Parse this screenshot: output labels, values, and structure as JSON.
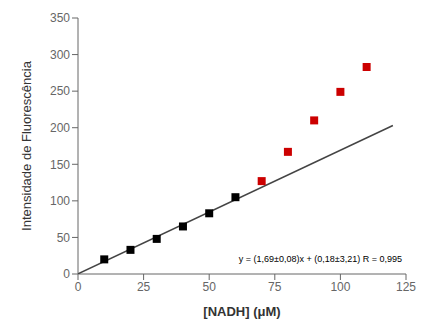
{
  "chart_data": {
    "type": "scatter",
    "xlabel": "[NADH] (μM)",
    "ylabel": "Intensidade de Fluorescência",
    "annotation": "y = (1,69±0,08)x + (0,18±3,21)  R = 0,995",
    "xlim": [
      0,
      125
    ],
    "ylim": [
      0,
      350
    ],
    "xticks": [
      0,
      25,
      50,
      75,
      100,
      125
    ],
    "yticks": [
      0,
      50,
      100,
      150,
      200,
      250,
      300,
      350
    ],
    "grid": false,
    "series": [
      {
        "type": "scatter",
        "marker": "square",
        "color": "#000000",
        "x": [
          10,
          20,
          30,
          40,
          50,
          60
        ],
        "values": [
          20,
          33,
          48,
          65,
          83,
          105
        ]
      },
      {
        "type": "scatter",
        "marker": "square",
        "color": "#cc0000",
        "x": [
          70,
          80,
          90,
          100,
          110
        ],
        "values": [
          127,
          167,
          210,
          249,
          283
        ]
      },
      {
        "type": "line",
        "color": "#444444",
        "x": [
          0,
          120
        ],
        "values": [
          0.18,
          202.98
        ]
      }
    ]
  }
}
